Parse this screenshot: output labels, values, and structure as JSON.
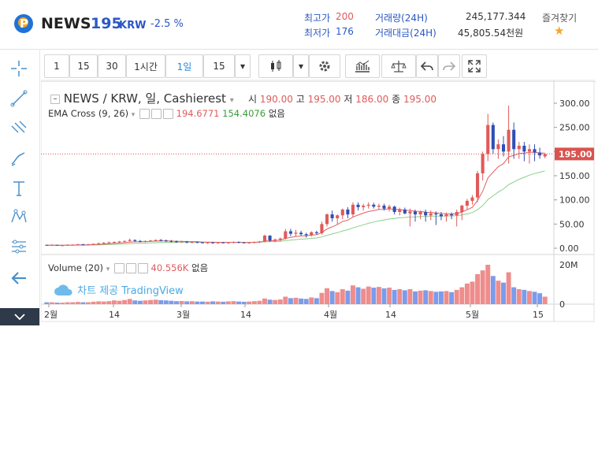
{
  "header": {
    "coin_name": "NEWS",
    "price": "195",
    "currency": "KRW",
    "change": "-2.5 %",
    "high_label": "최고가",
    "high_value": "200",
    "low_label": "최저가",
    "low_value": "176",
    "volume_label": "거래량(24H)",
    "volume_value": "245,177.344",
    "amount_label": "거래대금(24H)",
    "amount_value": "45,805.54천원",
    "favorite_label": "즐겨찾기",
    "favorite_icon": "★"
  },
  "toolbar": {
    "interval_1": "1",
    "interval_15": "15",
    "interval_30": "30",
    "interval_1h": "1시간",
    "interval_1d": "1일",
    "interval_select": "15",
    "dropdown_icon": "▾"
  },
  "legend": {
    "symbol": "NEWS / KRW, 일, Cashierest",
    "open_label": "시",
    "open": "190.00",
    "high_label": "고",
    "high": "195.00",
    "low_label": "저",
    "low": "186.00",
    "close_label": "종",
    "close": "195.00",
    "ema_name": "EMA Cross (9, 26)",
    "ema_fast": "194.6771",
    "ema_slow": "154.4076",
    "ema_extra": "없음",
    "vol_name": "Volume (20)",
    "vol_value": "40.556K",
    "vol_extra": "없음",
    "watermark": "차트 제공 TradingView"
  },
  "colors": {
    "up": "#e05a5a",
    "down": "#2f4fb5",
    "vol_up": "#ef8c8c",
    "vol_down": "#7c9bea",
    "ema_fast": "#e06060",
    "ema_slow": "#8ccf8c",
    "price_label_bg": "#d9534f"
  },
  "chart_data": {
    "type": "candlestick",
    "x_tick_labels": [
      "2월",
      "14",
      "3월",
      "14",
      "4월",
      "14",
      "5월",
      "15"
    ],
    "y_tick_labels": [
      "300.00",
      "250.00",
      "200.00",
      "150.00",
      "100.00",
      "50.00",
      "0.00"
    ],
    "ylim": [
      0,
      300
    ],
    "last_price_label": "195.00",
    "volume_y_labels": [
      "20M",
      "0"
    ],
    "candles": [
      [
        7,
        7,
        5,
        6
      ],
      [
        6,
        8,
        5,
        7
      ],
      [
        7,
        7,
        5,
        6
      ],
      [
        6,
        7,
        5,
        6
      ],
      [
        6,
        8,
        5,
        7
      ],
      [
        7,
        8,
        6,
        7
      ],
      [
        7,
        9,
        6,
        8
      ],
      [
        8,
        9,
        6,
        7
      ],
      [
        7,
        9,
        6,
        8
      ],
      [
        8,
        10,
        7,
        9
      ],
      [
        9,
        12,
        8,
        10
      ],
      [
        10,
        13,
        9,
        11
      ],
      [
        11,
        14,
        9,
        12
      ],
      [
        12,
        14,
        10,
        13
      ],
      [
        13,
        15,
        11,
        14
      ],
      [
        14,
        16,
        12,
        15
      ],
      [
        15,
        20,
        13,
        17
      ],
      [
        17,
        18,
        13,
        15
      ],
      [
        15,
        17,
        12,
        14
      ],
      [
        14,
        16,
        12,
        15
      ],
      [
        15,
        17,
        13,
        16
      ],
      [
        16,
        18,
        14,
        17
      ],
      [
        17,
        19,
        14,
        16
      ],
      [
        16,
        18,
        13,
        15
      ],
      [
        15,
        17,
        12,
        14
      ],
      [
        14,
        16,
        11,
        13
      ],
      [
        13,
        15,
        11,
        14
      ],
      [
        14,
        15,
        10,
        12
      ],
      [
        12,
        14,
        10,
        13
      ],
      [
        13,
        14,
        10,
        12
      ],
      [
        12,
        13,
        10,
        11
      ],
      [
        11,
        13,
        9,
        12
      ],
      [
        12,
        13,
        9,
        11
      ],
      [
        11,
        13,
        9,
        12
      ],
      [
        12,
        13,
        10,
        11
      ],
      [
        11,
        13,
        9,
        12
      ],
      [
        12,
        14,
        10,
        13
      ],
      [
        13,
        14,
        10,
        12
      ],
      [
        12,
        13,
        10,
        11
      ],
      [
        11,
        13,
        9,
        12
      ],
      [
        12,
        14,
        10,
        13
      ],
      [
        13,
        15,
        11,
        14
      ],
      [
        14,
        28,
        12,
        26
      ],
      [
        26,
        27,
        13,
        16
      ],
      [
        16,
        20,
        12,
        18
      ],
      [
        18,
        22,
        14,
        20
      ],
      [
        20,
        40,
        18,
        35
      ],
      [
        35,
        40,
        25,
        30
      ],
      [
        30,
        38,
        24,
        32
      ],
      [
        32,
        36,
        26,
        29
      ],
      [
        29,
        32,
        22,
        27
      ],
      [
        27,
        35,
        24,
        33
      ],
      [
        33,
        36,
        28,
        31
      ],
      [
        31,
        55,
        28,
        50
      ],
      [
        50,
        72,
        45,
        70
      ],
      [
        70,
        78,
        55,
        62
      ],
      [
        62,
        70,
        50,
        68
      ],
      [
        68,
        82,
        60,
        80
      ],
      [
        80,
        85,
        62,
        70
      ],
      [
        70,
        95,
        65,
        90
      ],
      [
        90,
        95,
        78,
        85
      ],
      [
        85,
        92,
        78,
        88
      ],
      [
        88,
        95,
        82,
        90
      ],
      [
        90,
        94,
        82,
        86
      ],
      [
        86,
        92,
        80,
        88
      ],
      [
        88,
        92,
        78,
        82
      ],
      [
        82,
        90,
        76,
        86
      ],
      [
        86,
        88,
        70,
        75
      ],
      [
        75,
        84,
        68,
        80
      ],
      [
        80,
        84,
        70,
        72
      ],
      [
        72,
        82,
        45,
        76
      ],
      [
        76,
        80,
        55,
        70
      ],
      [
        70,
        78,
        60,
        75
      ],
      [
        75,
        80,
        55,
        68
      ],
      [
        68,
        78,
        58,
        72
      ],
      [
        72,
        76,
        48,
        70
      ],
      [
        70,
        75,
        58,
        66
      ],
      [
        66,
        74,
        55,
        70
      ],
      [
        70,
        74,
        60,
        68
      ],
      [
        68,
        80,
        45,
        75
      ],
      [
        75,
        90,
        58,
        88
      ],
      [
        88,
        102,
        80,
        98
      ],
      [
        98,
        110,
        90,
        105
      ],
      [
        105,
        160,
        95,
        155
      ],
      [
        155,
        200,
        140,
        195
      ],
      [
        195,
        278,
        180,
        255
      ],
      [
        255,
        260,
        195,
        205
      ],
      [
        205,
        225,
        185,
        215
      ],
      [
        215,
        232,
        190,
        200
      ],
      [
        200,
        295,
        175,
        245
      ],
      [
        245,
        260,
        185,
        205
      ],
      [
        205,
        220,
        185,
        212
      ],
      [
        212,
        220,
        180,
        200
      ],
      [
        200,
        215,
        175,
        205
      ],
      [
        205,
        215,
        180,
        198
      ],
      [
        198,
        208,
        185,
        192
      ],
      [
        190,
        195,
        186,
        195
      ]
    ],
    "volumes": [
      1,
      1,
      0.8,
      0.8,
      1,
      1,
      1.2,
      1,
      1,
      1.3,
      1.5,
      1.4,
      1.6,
      2,
      1.8,
      2.2,
      2.8,
      2,
      1.8,
      2,
      2.2,
      2.4,
      2.1,
      2,
      1.8,
      1.6,
      1.7,
      1.5,
      1.6,
      1.4,
      1.4,
      1.3,
      1.5,
      1.4,
      1.3,
      1.5,
      1.6,
      1.4,
      1.3,
      1.4,
      1.6,
      1.8,
      3,
      2.4,
      2.2,
      2.5,
      4,
      3.2,
      3.4,
      3,
      2.8,
      3.6,
      3.2,
      6,
      8.5,
      7,
      6.4,
      8,
      7.2,
      10,
      9,
      8.2,
      9.4,
      8.8,
      9.2,
      8.4,
      8.8,
      7.6,
      8,
      7.4,
      8,
      6.8,
      7.2,
      7.4,
      7,
      6.6,
      6.8,
      7,
      6.4,
      7.6,
      9,
      11,
      12,
      16,
      18,
      21,
      15,
      12.5,
      11.5,
      17,
      9,
      8,
      7.6,
      7,
      6.6,
      5.8,
      4
    ]
  }
}
